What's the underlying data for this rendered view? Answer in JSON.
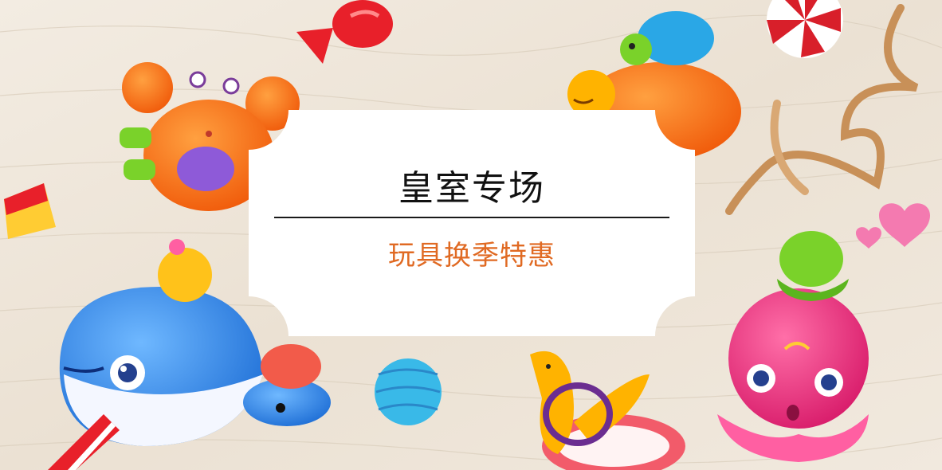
{
  "banner": {
    "title": "皇室专场",
    "subtitle": "玩具换季特惠"
  },
  "colors": {
    "background": "#efe6d9",
    "title": "#111111",
    "subtitle": "#e06a23",
    "card": "#ffffff"
  },
  "icons": [
    "crab-toy-icon",
    "turtle-toy-icon",
    "whale-toy-icon",
    "octopus-toy-icon",
    "seal-toy-icon",
    "candy-icon",
    "ribbon-icon",
    "heart-icon",
    "ball-icon"
  ]
}
